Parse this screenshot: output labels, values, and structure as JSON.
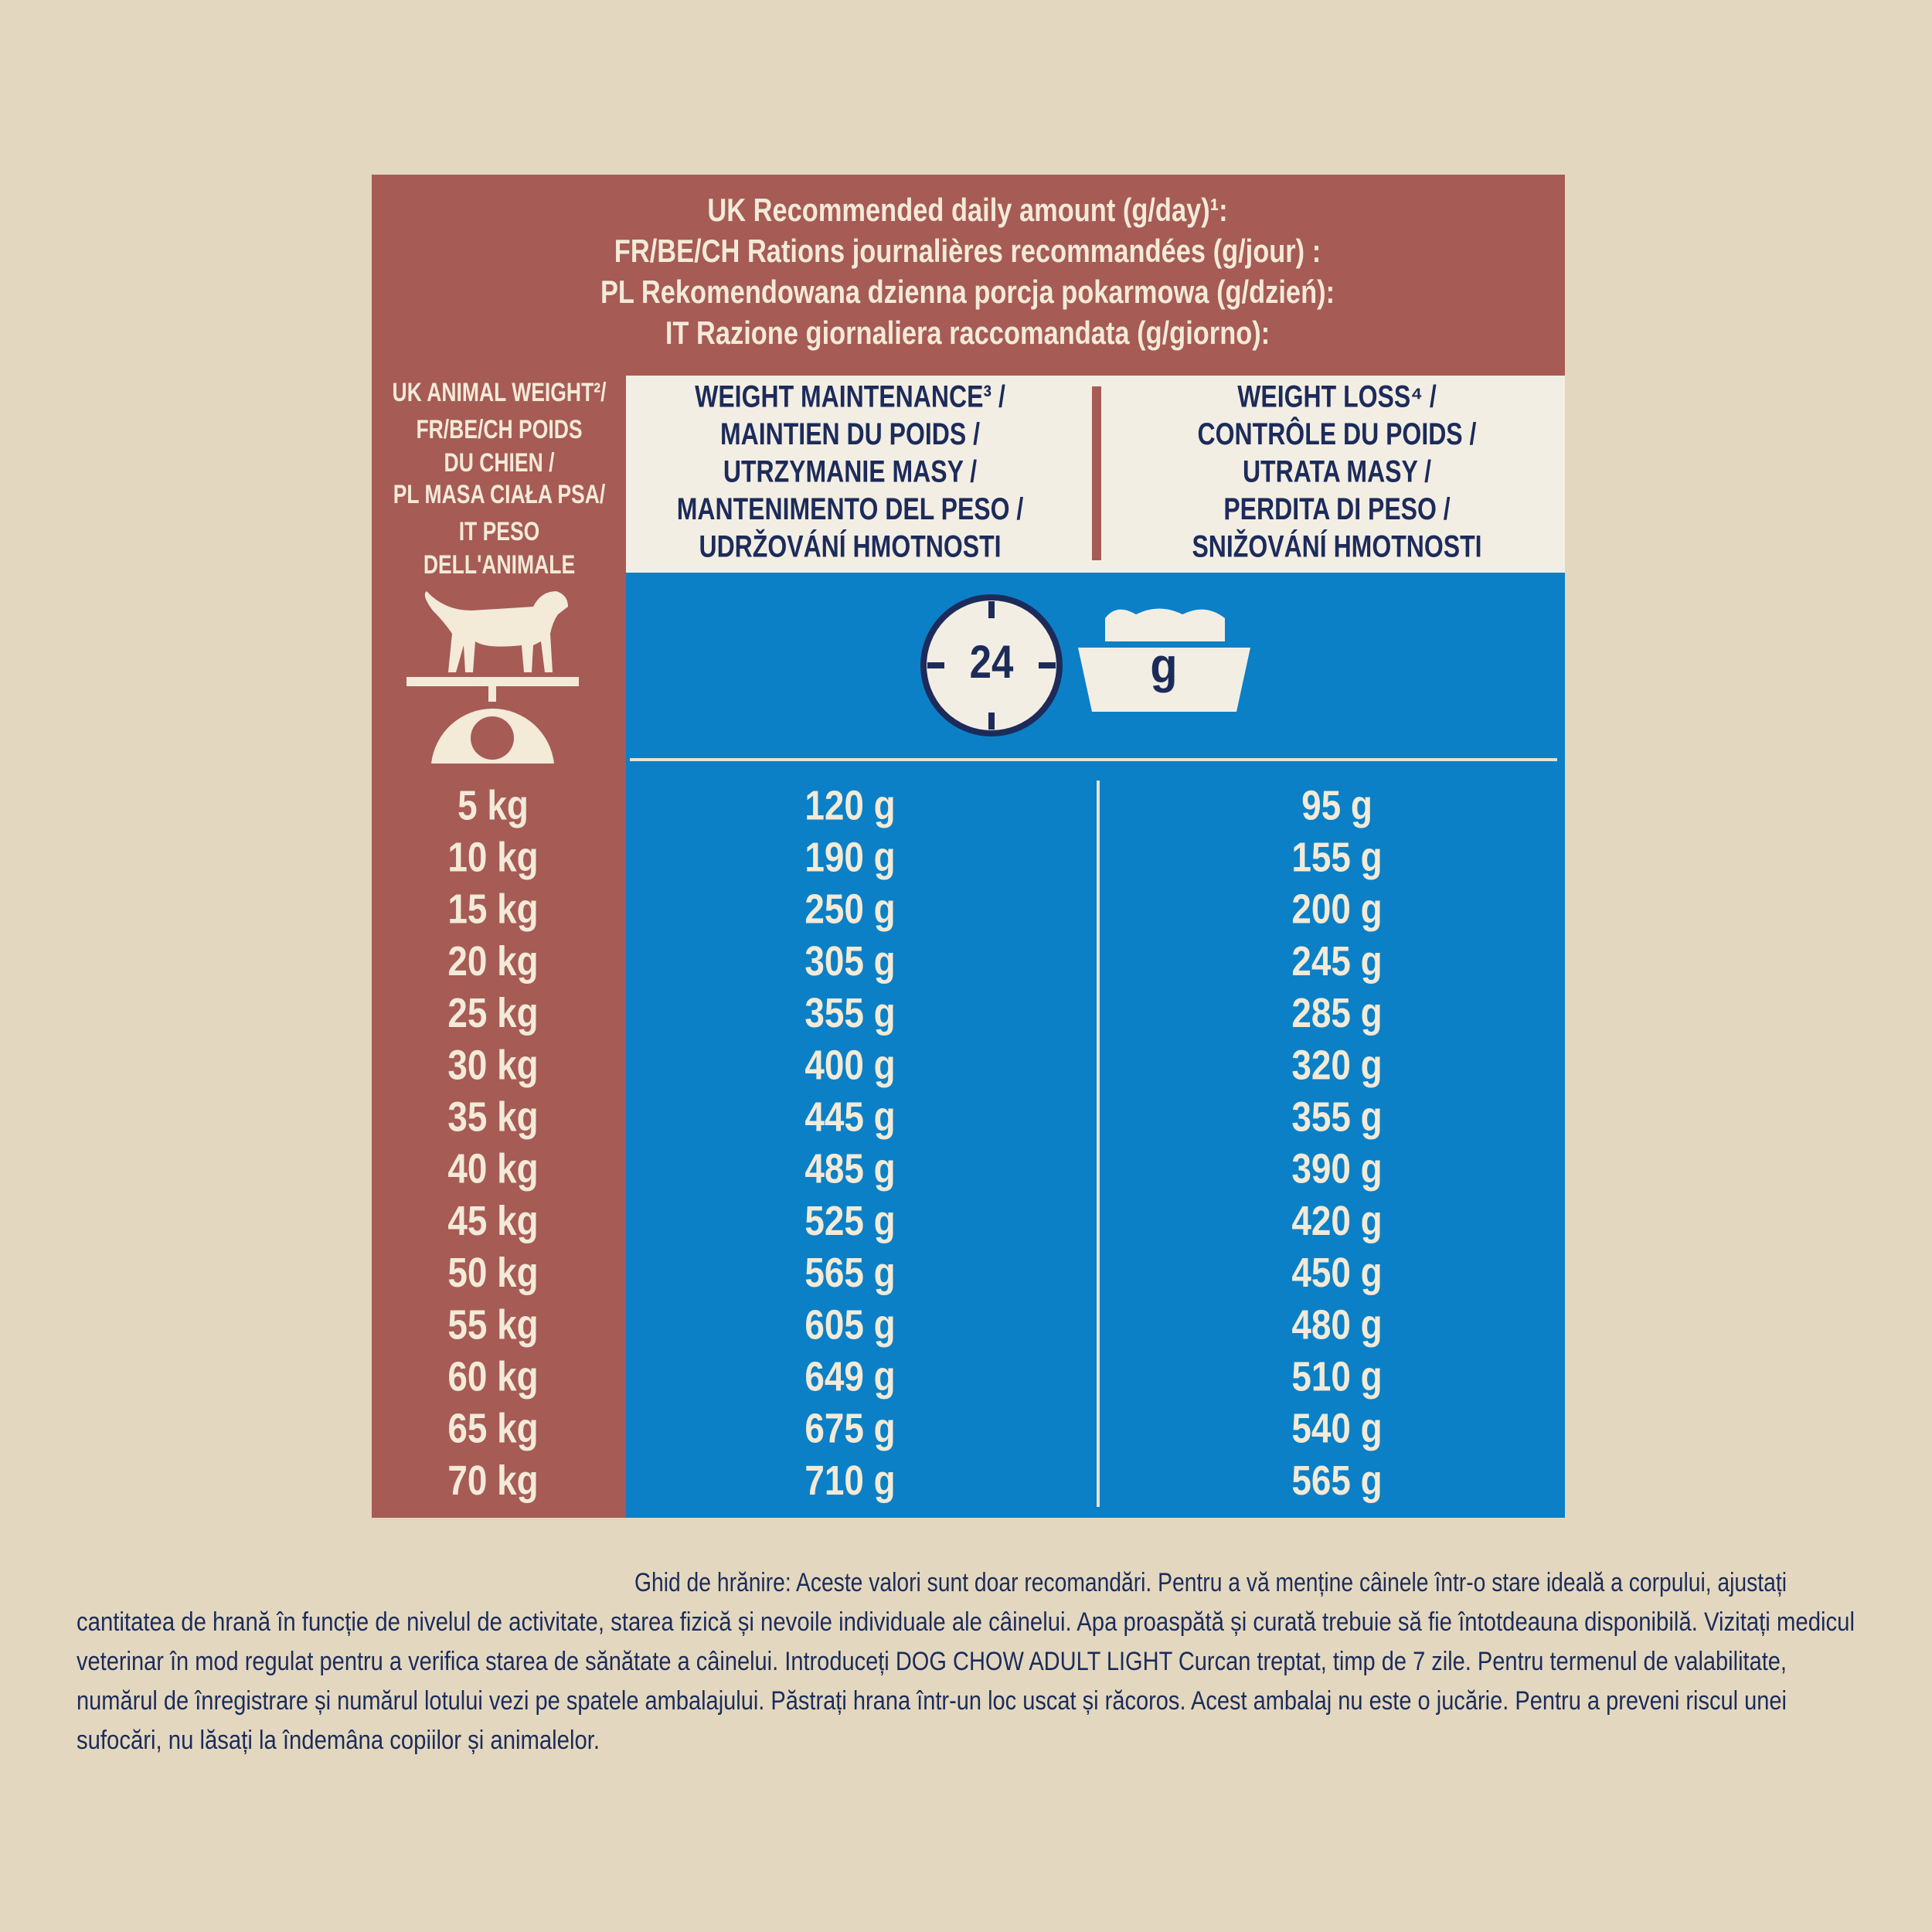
{
  "header": {
    "lines": [
      "UK Recommended daily amount (g/day)¹:",
      "FR/BE/CH Rations journalières recommandées (g/jour) :",
      "PL Rekomendowana dzienna porcja pokarmowa (g/dzień):",
      "IT Razione giornaliera raccomandata (g/giorno):"
    ]
  },
  "weight_header": {
    "lines": [
      "UK ANIMAL WEIGHT²/",
      "FR/BE/CH POIDS",
      "DU CHIEN /",
      "PL MASA CIAŁA PSA/",
      "IT PESO",
      "DELL'ANIMALE"
    ]
  },
  "maintenance_header": {
    "lines": [
      "WEIGHT MAINTENANCE³ /",
      "MAINTIEN DU POIDS /",
      "UTRZYMANIE MASY /",
      "MANTENIMENTO DEL PESO /",
      "UDRŽOVÁNÍ HMOTNOSTI"
    ]
  },
  "loss_header": {
    "lines": [
      "WEIGHT LOSS⁴ /",
      "CONTRÔLE DU POIDS /",
      "UTRATA MASY /",
      "PERDITA DI PESO /",
      "SNIŽOVÁNÍ HMOTNOSTI"
    ]
  },
  "icons": {
    "clock": "24",
    "bowl": "g"
  },
  "table": {
    "rows": [
      [
        "5 kg",
        "120 g",
        "95 g"
      ],
      [
        "10 kg",
        "190 g",
        "155 g"
      ],
      [
        "15 kg",
        "250 g",
        "200 g"
      ],
      [
        "20 kg",
        "305 g",
        "245 g"
      ],
      [
        "25 kg",
        "355 g",
        "285 g"
      ],
      [
        "30 kg",
        "400 g",
        "320 g"
      ],
      [
        "35 kg",
        "445 g",
        "355 g"
      ],
      [
        "40 kg",
        "485 g",
        "390 g"
      ],
      [
        "45 kg",
        "525 g",
        "420 g"
      ],
      [
        "50 kg",
        "565 g",
        "450 g"
      ],
      [
        "55 kg",
        "605 g",
        "480 g"
      ],
      [
        "60 kg",
        "649 g",
        "510 g"
      ],
      [
        "65 kg",
        "675 g",
        "540 g"
      ],
      [
        "70 kg",
        "710 g",
        "565 g"
      ]
    ]
  },
  "footer": {
    "lines": [
      "Ghid de hrănire: Aceste valori sunt doar recomandări. Pentru a vă menține câinele într-o stare ideală a corpului, ajustați",
      "cantitatea de hrană în funcție de nivelul de activitate, starea fizică și nevoile individuale ale câinelui. Apa proaspătă și curată trebuie să fie întotdeauna disponibilă. Vizitați medicul",
      "veterinar în mod regulat pentru a verifica starea de sănătate a câinelui. Introduceți DOG CHOW ADULT LIGHT Curcan treptat, timp de 7 zile.  Pentru termenul de valabilitate,",
      "numărul de înregistrare și numărul lotului vezi pe spatele ambalajului. Păstrați hrana într-un loc uscat și răcoros. Acest ambalaj nu este o jucărie. Pentru a preveni riscul unei",
      "sufocări, nu lăsați la îndemâna copiilor și animalelor."
    ]
  }
}
